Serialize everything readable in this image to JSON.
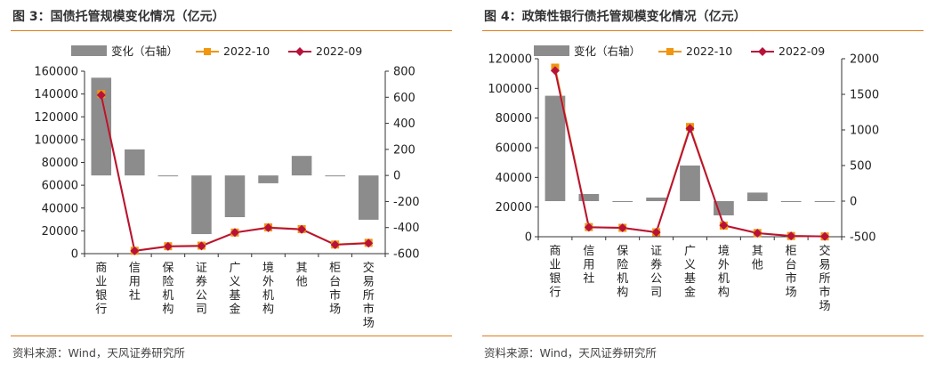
{
  "charts": [
    {
      "title": "图 3：国债托管规模变化情况（亿元）",
      "source": "资料来源：Wind，天风证券研究所"
    },
    {
      "title": "图 4：政策性银行债托管规模变化情况（亿元）",
      "source": "资料来源：Wind，天风证券研究所"
    }
  ],
  "colors": {
    "bar": "#8c8c8c",
    "s2022_10": "#f0960f",
    "s2022_09": "#b8123a",
    "rule": "#e07b1a"
  },
  "chart_data": [
    {
      "type": "bar",
      "title": "图 3：国债托管规模变化情况（亿元）",
      "categories": [
        "商业银行",
        "信用社",
        "保险机构",
        "证券公司",
        "广义基金",
        "境外机构",
        "其他",
        "柜台市场",
        "交易所市场"
      ],
      "series": [
        {
          "name": "变化（右轴）",
          "kind": "bar",
          "axis": "right",
          "values": [
            750,
            200,
            -5,
            -450,
            -320,
            -60,
            150,
            -5,
            -340
          ]
        },
        {
          "name": "2022-10",
          "kind": "line",
          "axis": "left",
          "values": [
            140000,
            2500,
            6500,
            7000,
            18500,
            23000,
            21500,
            8000,
            9500
          ]
        },
        {
          "name": "2022-09",
          "kind": "line",
          "axis": "left",
          "values": [
            139000,
            2400,
            6300,
            6700,
            18500,
            22700,
            21300,
            7800,
            9200
          ]
        }
      ],
      "yleft": {
        "min": 0,
        "max": 160000,
        "step": 20000
      },
      "yright": {
        "min": -600,
        "max": 800,
        "step": 200
      }
    },
    {
      "type": "bar",
      "title": "图 4：政策性银行债托管规模变化情况（亿元）",
      "categories": [
        "商业银行",
        "信用社",
        "保险机构",
        "证券公司",
        "广义基金",
        "境外机构",
        "其他",
        "柜台市场",
        "交易所市场"
      ],
      "series": [
        {
          "name": "变化（右轴）",
          "kind": "bar",
          "axis": "right",
          "values": [
            1480,
            100,
            -10,
            50,
            500,
            -200,
            120,
            -5,
            0
          ]
        },
        {
          "name": "2022-10",
          "kind": "line",
          "axis": "left",
          "values": [
            114000,
            6500,
            6000,
            3000,
            74000,
            7500,
            2500,
            500,
            200
          ]
        },
        {
          "name": "2022-09",
          "kind": "line",
          "axis": "left",
          "values": [
            112000,
            6400,
            6000,
            3000,
            73000,
            7700,
            2400,
            500,
            200
          ]
        }
      ],
      "yleft": {
        "min": 0,
        "max": 120000,
        "step": 20000
      },
      "yright": {
        "min": -500,
        "max": 2000,
        "step": 500
      }
    }
  ]
}
